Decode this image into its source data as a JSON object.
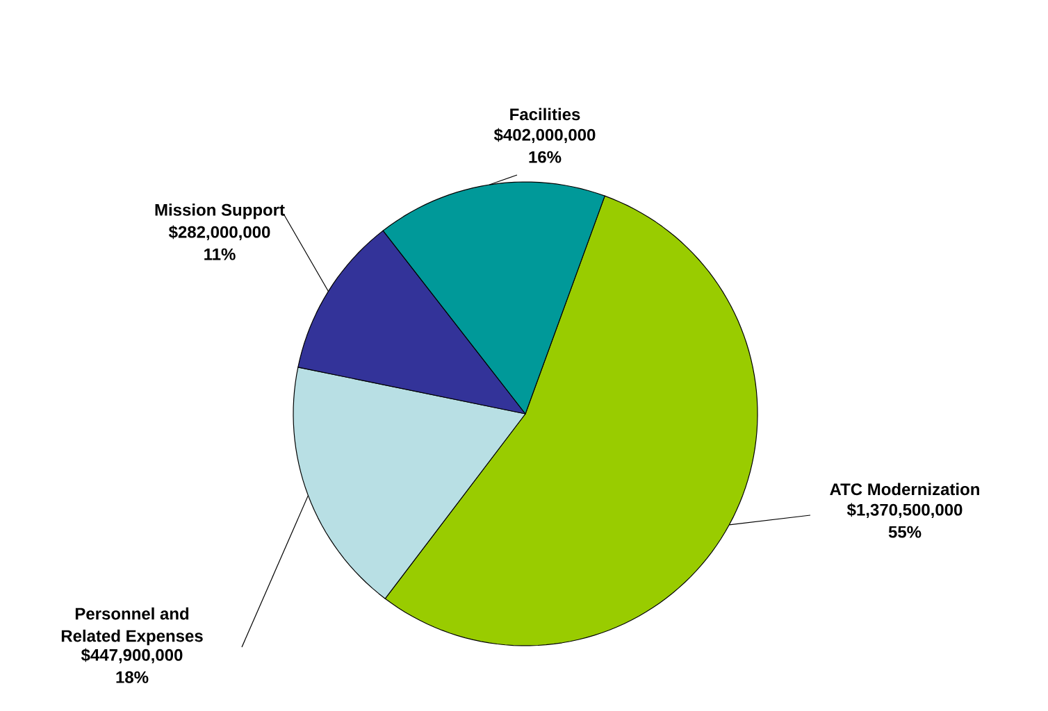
{
  "chart_data": {
    "type": "pie",
    "categories": [
      "ATC Modernization",
      "Personnel and Related Expenses",
      "Mission Support",
      "Facilities"
    ],
    "values": [
      1370500000,
      447900000,
      282000000,
      402000000
    ],
    "value_labels": [
      "$1,370,500,000",
      "$447,900,000",
      "$282,000,000",
      "$402,000,000"
    ],
    "annotations": [
      "55%",
      "18%",
      "11%",
      "16%"
    ],
    "colors": [
      "#99cc00",
      "#b8dfe4",
      "#333399",
      "#009999"
    ]
  }
}
